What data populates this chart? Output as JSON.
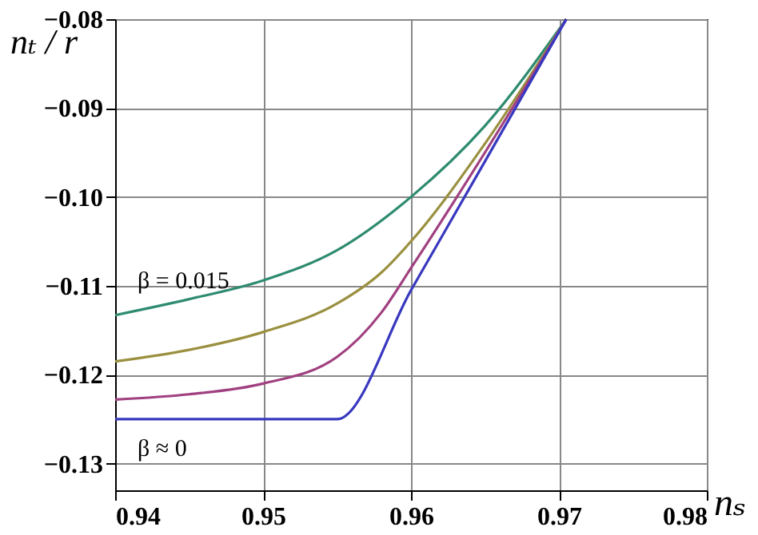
{
  "chart_data": {
    "type": "line",
    "xlabel": "nₛ",
    "ylabel": "nₜ / r",
    "series": [
      {
        "name": "β = 0.015",
        "color": "#2e8b70",
        "x": [
          0.94,
          0.945,
          0.95,
          0.955,
          0.96,
          0.965,
          0.9705
        ],
        "values": [
          -0.1133,
          -0.1115,
          -0.1094,
          -0.106,
          -0.1,
          -0.092,
          -0.08
        ]
      },
      {
        "color": "#9a9040",
        "x": [
          0.94,
          0.945,
          0.95,
          0.955,
          0.958,
          0.96,
          0.965,
          0.9705
        ],
        "values": [
          -0.1185,
          -0.1172,
          -0.1152,
          -0.112,
          -0.1085,
          -0.105,
          -0.094,
          -0.08
        ]
      },
      {
        "color": "#a04080",
        "x": [
          0.94,
          0.945,
          0.95,
          0.955,
          0.958,
          0.96,
          0.965,
          0.9705
        ],
        "values": [
          -0.1228,
          -0.1222,
          -0.121,
          -0.118,
          -0.113,
          -0.108,
          -0.095,
          -0.08
        ]
      },
      {
        "name": "β ≈ 0",
        "color": "#3838c0",
        "x": [
          0.94,
          0.955,
          0.96,
          0.965,
          0.9705
        ],
        "values": [
          -0.125,
          -0.125,
          -0.1105,
          -0.096,
          -0.08
        ]
      }
    ],
    "xlim": [
      0.94,
      0.98
    ],
    "xticks": [
      0.94,
      0.95,
      0.96,
      0.97,
      0.98
    ],
    "ylim": [
      -0.133,
      -0.08
    ],
    "yticks": [
      -0.13,
      -0.12,
      -0.11,
      {
        "value": -0.1,
        "label": "−0.10"
      },
      -0.09,
      -0.08
    ],
    "grid": true
  }
}
